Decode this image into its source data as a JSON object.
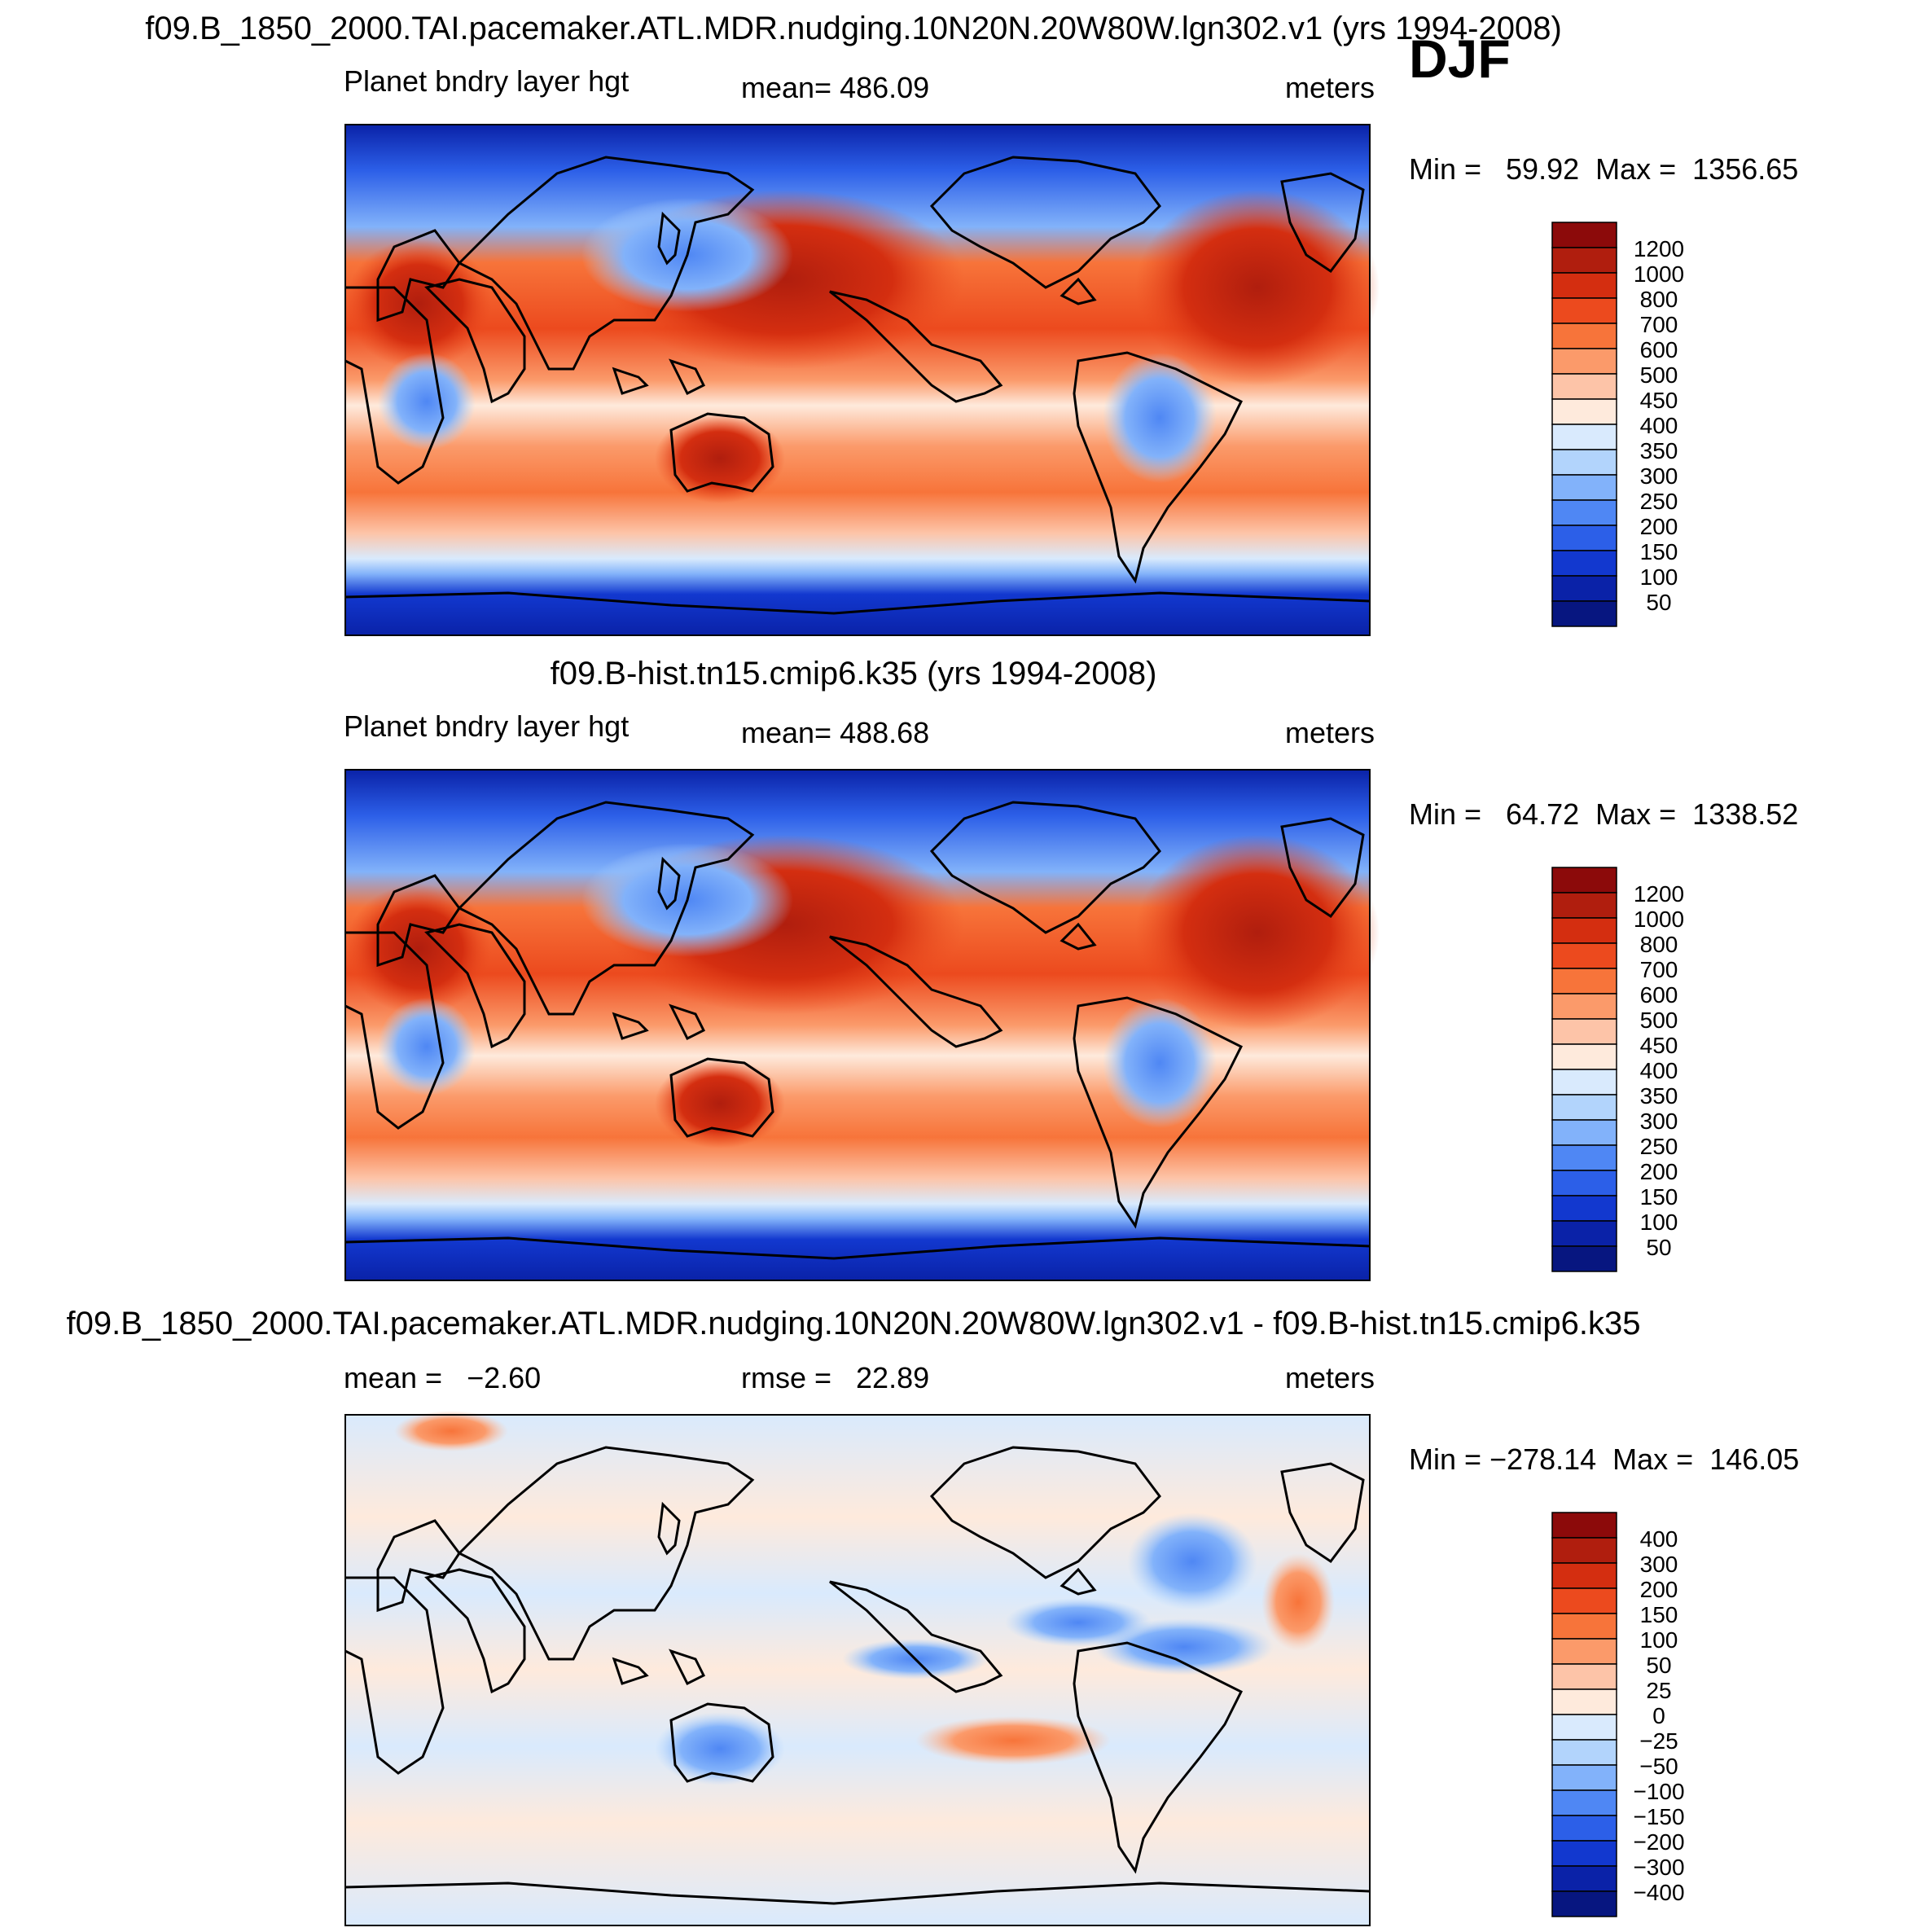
{
  "season": "DJF",
  "panels": [
    {
      "id": "case",
      "title": "f09.B_1850_2000.TAI.pacemaker.ATL.MDR.nudging.10N20N.20W80W.lgn302.v1 (yrs 1994-2008)",
      "variable": "Planet bndry layer hgt",
      "stat_text": "mean=  486.09",
      "units": "meters",
      "minmax_text": "Min =   59.92  Max =  1356.65",
      "colorbar_labels": [
        "1200",
        "1000",
        "800",
        "700",
        "600",
        "500",
        "450",
        "400",
        "350",
        "300",
        "250",
        "200",
        "150",
        "100",
        "50"
      ]
    },
    {
      "id": "control",
      "title": "f09.B-hist.tn15.cmip6.k35 (yrs 1994-2008)",
      "variable": "Planet bndry layer hgt",
      "stat_text": "mean=  488.68",
      "units": "meters",
      "minmax_text": "Min =   64.72  Max =  1338.52",
      "colorbar_labels": [
        "1200",
        "1000",
        "800",
        "700",
        "600",
        "500",
        "450",
        "400",
        "350",
        "300",
        "250",
        "200",
        "150",
        "100",
        "50"
      ]
    },
    {
      "id": "diff",
      "title": "f09.B_1850_2000.TAI.pacemaker.ATL.MDR.nudging.10N20N.20W80W.lgn302.v1 - f09.B-hist.tn15.cmip6.k35",
      "variable": "mean =   −2.60",
      "stat_text": "rmse =   22.89",
      "units": "meters",
      "minmax_text": "Min = −278.14  Max =  146.05",
      "colorbar_labels": [
        "400",
        "300",
        "200",
        "150",
        "100",
        "50",
        "25",
        "0",
        "−25",
        "−50",
        "−100",
        "−150",
        "−200",
        "−300",
        "−400"
      ]
    }
  ],
  "colors": {
    "abs_scale": [
      "#8c0a0a",
      "#b01e0e",
      "#d42e10",
      "#ec4a1e",
      "#f7743a",
      "#fb9a6a",
      "#fdc4a8",
      "#feeadc",
      "#d9eafd",
      "#b2d4fc",
      "#82b2fa",
      "#4f87f4",
      "#2c5fe8",
      "#1238cf",
      "#0a22a8",
      "#071680"
    ],
    "diff_scale": [
      "#8c0a0a",
      "#b01e0e",
      "#d42e10",
      "#ec4a1e",
      "#f7743a",
      "#fb9a6a",
      "#fdc4a8",
      "#feeadc",
      "#d9eafd",
      "#b2d4fc",
      "#82b2fa",
      "#4f87f4",
      "#2c5fe8",
      "#1238cf",
      "#0a22a8",
      "#071680"
    ]
  }
}
